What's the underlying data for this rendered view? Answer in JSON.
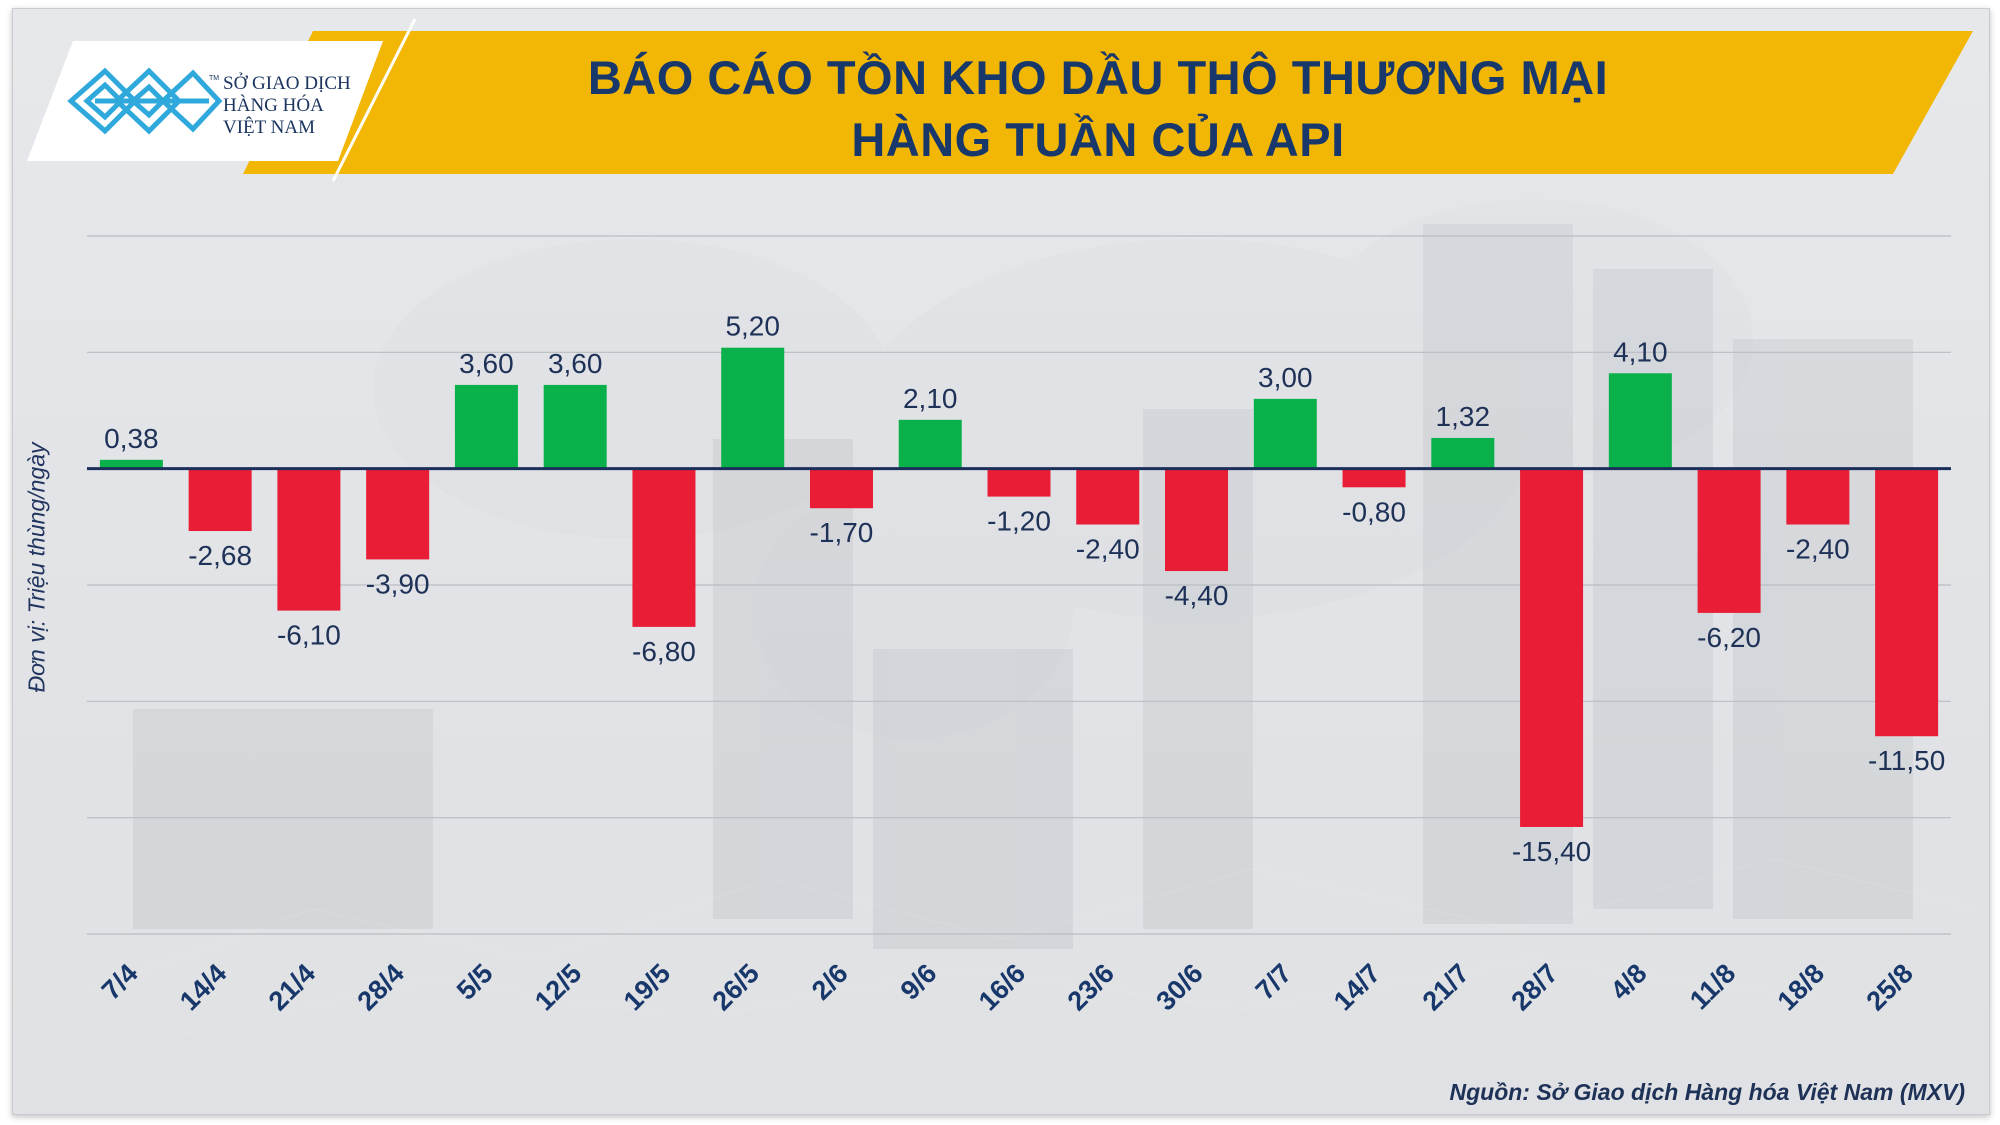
{
  "header": {
    "title_line1": "BÁO CÁO TỒN KHO DẦU THÔ THƯƠNG MẠI",
    "title_line2": "HÀNG TUẦN CỦA API",
    "logo_lines": [
      "SỞ GIAO DỊCH",
      "HÀNG HÓA",
      "VIỆT NAM"
    ],
    "logo_tm": "TM"
  },
  "footer": {
    "source": "Nguồn: Sở Giao dịch Hàng hóa Việt Nam (MXV)"
  },
  "colors": {
    "positive": "#0ab14b",
    "negative": "#e91d36",
    "banner": "#f2b705",
    "title": "#18376a",
    "text": "#1e3157"
  },
  "chart_data": {
    "type": "bar",
    "title": "BÁO CÁO TỒN KHO DẦU THÔ THƯƠNG MẠI HÀNG TUẦN CỦA API",
    "xlabel": "",
    "ylabel": "Đơn vị: Triệu thùng/ngày",
    "ylim": [
      -20,
      10
    ],
    "grid": true,
    "legend": "none",
    "categories": [
      "7/4",
      "14/4",
      "21/4",
      "28/4",
      "5/5",
      "12/5",
      "19/5",
      "26/5",
      "2/6",
      "9/6",
      "16/6",
      "23/6",
      "30/6",
      "7/7",
      "14/7",
      "21/7",
      "28/7",
      "4/8",
      "11/8",
      "18/8",
      "25/8"
    ],
    "values": [
      0.38,
      -2.68,
      -6.1,
      -3.9,
      3.6,
      3.6,
      -6.8,
      5.2,
      -1.7,
      2.1,
      -1.2,
      -2.4,
      -4.4,
      3.0,
      -0.8,
      1.32,
      -15.4,
      4.1,
      -6.2,
      -2.4,
      -11.5
    ],
    "value_labels": [
      "0,38",
      "-2,68",
      "-6,10",
      "-3,90",
      "3,60",
      "3,60",
      "-6,80",
      "5,20",
      "-1,70",
      "2,10",
      "-1,20",
      "-2,40",
      "-4,40",
      "3,00",
      "-0,80",
      "1,32",
      "-15,40",
      "4,10",
      "-6,20",
      "-2,40",
      "-11,50"
    ]
  }
}
